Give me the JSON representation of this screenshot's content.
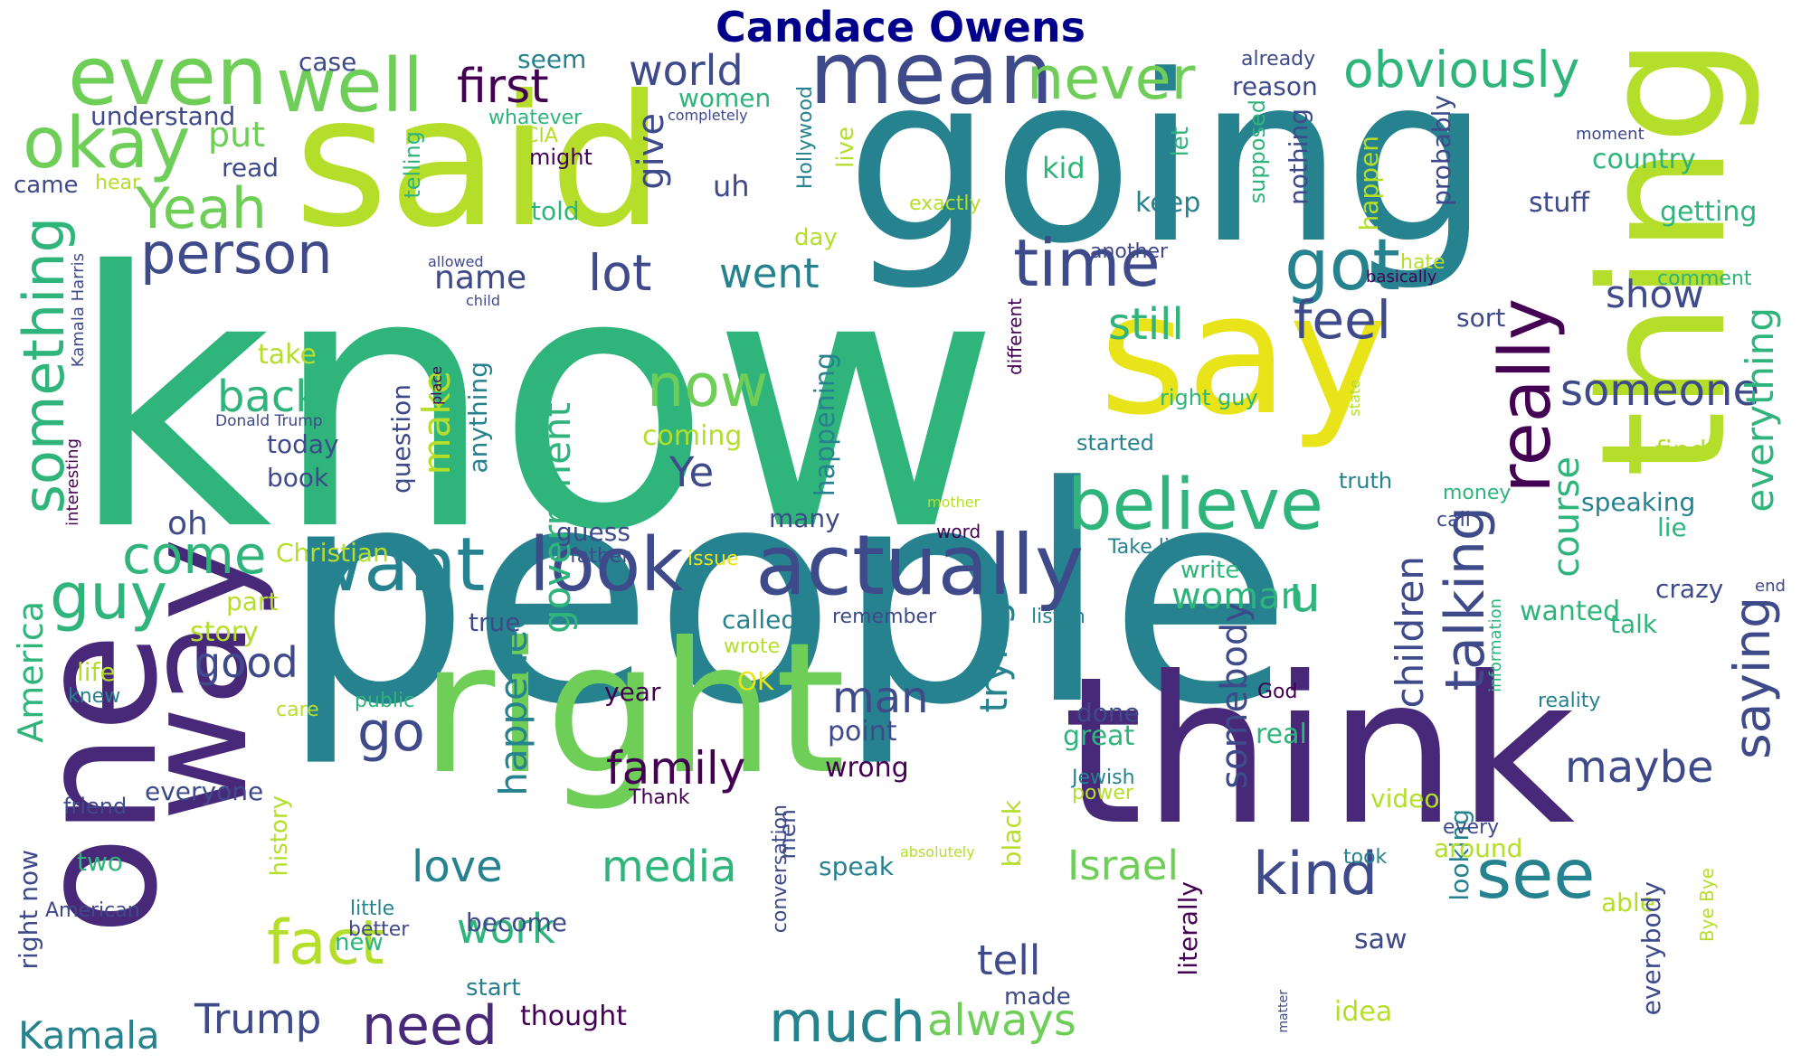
{
  "title": "Candace Owens",
  "palette": {
    "purple": "#482878",
    "indigo": "#3e4a89",
    "blue": "#31688e",
    "teal": "#26828e",
    "green": "#2fb47c",
    "lime": "#6ece58",
    "yellowgreen": "#b5de2b",
    "yellow": "#e8e419",
    "dark": "#440154"
  },
  "words": [
    {
      "text": "know",
      "color": "green"
    },
    {
      "text": "people",
      "color": "teal"
    },
    {
      "text": "going",
      "color": "teal"
    },
    {
      "text": "said",
      "color": "yellowgreen"
    },
    {
      "text": "think",
      "color": "purple"
    },
    {
      "text": "right",
      "color": "lime"
    },
    {
      "text": "say",
      "color": "yellow"
    },
    {
      "text": "one",
      "color": "purple"
    },
    {
      "text": "way",
      "color": "purple"
    },
    {
      "text": "thing",
      "color": "yellowgreen"
    },
    {
      "text": "mean",
      "color": "indigo"
    },
    {
      "text": "even",
      "color": "lime"
    },
    {
      "text": "well",
      "color": "lime"
    },
    {
      "text": "okay",
      "color": "lime"
    },
    {
      "text": "Yeah",
      "color": "lime"
    },
    {
      "text": "actually",
      "color": "indigo"
    },
    {
      "text": "look",
      "color": "indigo"
    },
    {
      "text": "want",
      "color": "teal"
    },
    {
      "text": "believe",
      "color": "green"
    },
    {
      "text": "really",
      "color": "dark"
    },
    {
      "text": "got",
      "color": "teal"
    },
    {
      "text": "time",
      "color": "indigo"
    },
    {
      "text": "person",
      "color": "indigo"
    },
    {
      "text": "something",
      "color": "green"
    },
    {
      "text": "guy",
      "color": "green"
    },
    {
      "text": "come",
      "color": "green"
    },
    {
      "text": "never",
      "color": "lime"
    },
    {
      "text": "obviously",
      "color": "green"
    },
    {
      "text": "first",
      "color": "dark"
    },
    {
      "text": "world",
      "color": "indigo"
    },
    {
      "text": "see",
      "color": "teal"
    },
    {
      "text": "kind",
      "color": "indigo"
    },
    {
      "text": "saying",
      "color": "indigo"
    },
    {
      "text": "talking",
      "color": "indigo"
    },
    {
      "text": "now",
      "color": "lime"
    },
    {
      "text": "lot",
      "color": "indigo"
    },
    {
      "text": "went",
      "color": "teal"
    },
    {
      "text": "feel",
      "color": "indigo"
    },
    {
      "text": "still",
      "color": "green"
    },
    {
      "text": "fact",
      "color": "yellowgreen"
    },
    {
      "text": "need",
      "color": "purple"
    },
    {
      "text": "much",
      "color": "teal"
    },
    {
      "text": "always",
      "color": "lime"
    },
    {
      "text": "go",
      "color": "indigo"
    },
    {
      "text": "family",
      "color": "dark"
    },
    {
      "text": "maybe",
      "color": "indigo"
    },
    {
      "text": "someone",
      "color": "indigo"
    },
    {
      "text": "everything",
      "color": "green"
    },
    {
      "text": "show",
      "color": "indigo"
    },
    {
      "text": "u",
      "color": "green"
    },
    {
      "text": "Israel",
      "color": "lime"
    },
    {
      "text": "media",
      "color": "green"
    },
    {
      "text": "love",
      "color": "teal"
    },
    {
      "text": "work",
      "color": "green"
    },
    {
      "text": "Trump",
      "color": "indigo"
    },
    {
      "text": "Kamala",
      "color": "teal"
    },
    {
      "text": "tell",
      "color": "indigo"
    },
    {
      "text": "back",
      "color": "green"
    },
    {
      "text": "good",
      "color": "indigo"
    },
    {
      "text": "make",
      "color": "yellowgreen"
    },
    {
      "text": "government",
      "color": "green"
    },
    {
      "text": "happened",
      "color": "teal"
    },
    {
      "text": "man",
      "color": "indigo"
    },
    {
      "text": "trying",
      "color": "teal"
    },
    {
      "text": "children",
      "color": "indigo"
    },
    {
      "text": "somebody",
      "color": "indigo"
    },
    {
      "text": "woman",
      "color": "green"
    },
    {
      "text": "course",
      "color": "green"
    },
    {
      "text": "Ye",
      "color": "indigo"
    },
    {
      "text": "name",
      "color": "indigo"
    },
    {
      "text": "give",
      "color": "indigo"
    },
    {
      "text": "America",
      "color": "green"
    },
    {
      "text": "put",
      "color": "lime"
    },
    {
      "text": "uh",
      "color": "indigo"
    },
    {
      "text": "oh",
      "color": "indigo"
    },
    {
      "text": "kid",
      "color": "green"
    },
    {
      "text": "keep",
      "color": "teal"
    },
    {
      "text": "coming",
      "color": "yellowgreen"
    },
    {
      "text": "today",
      "color": "indigo"
    },
    {
      "text": "book",
      "color": "indigo"
    },
    {
      "text": "take",
      "color": "yellowgreen"
    },
    {
      "text": "question",
      "color": "indigo"
    },
    {
      "text": "anything",
      "color": "teal"
    },
    {
      "text": "happening",
      "color": "teal"
    },
    {
      "text": "guess",
      "color": "indigo"
    },
    {
      "text": "many",
      "color": "indigo"
    },
    {
      "text": "story",
      "color": "yellowgreen"
    },
    {
      "text": "part",
      "color": "yellowgreen"
    },
    {
      "text": "true",
      "color": "indigo"
    },
    {
      "text": "called",
      "color": "teal"
    },
    {
      "text": "year",
      "color": "dark"
    },
    {
      "text": "point",
      "color": "indigo"
    },
    {
      "text": "wrong",
      "color": "dark"
    },
    {
      "text": "done",
      "color": "indigo"
    },
    {
      "text": "great",
      "color": "green"
    },
    {
      "text": "real",
      "color": "green"
    },
    {
      "text": "speak",
      "color": "teal"
    },
    {
      "text": "become",
      "color": "indigo"
    },
    {
      "text": "new",
      "color": "green"
    },
    {
      "text": "made",
      "color": "indigo"
    },
    {
      "text": "thought",
      "color": "dark"
    },
    {
      "text": "start",
      "color": "teal"
    },
    {
      "text": "saw",
      "color": "indigo"
    },
    {
      "text": "looking",
      "color": "teal"
    },
    {
      "text": "literally",
      "color": "dark"
    },
    {
      "text": "black",
      "color": "yellowgreen"
    },
    {
      "text": "men",
      "color": "indigo"
    },
    {
      "text": "conversation",
      "color": "indigo"
    },
    {
      "text": "video",
      "color": "yellowgreen"
    },
    {
      "text": "around",
      "color": "yellowgreen"
    },
    {
      "text": "able",
      "color": "yellowgreen"
    },
    {
      "text": "idea",
      "color": "yellowgreen"
    },
    {
      "text": "everybody",
      "color": "indigo"
    },
    {
      "text": "wanted",
      "color": "green"
    },
    {
      "text": "talk",
      "color": "green"
    },
    {
      "text": "crazy",
      "color": "indigo"
    },
    {
      "text": "speaking",
      "color": "teal"
    },
    {
      "text": "lie",
      "color": "green"
    },
    {
      "text": "find",
      "color": "yellowgreen"
    },
    {
      "text": "getting",
      "color": "green"
    },
    {
      "text": "country",
      "color": "green"
    },
    {
      "text": "stuff",
      "color": "indigo"
    },
    {
      "text": "probably",
      "color": "indigo"
    },
    {
      "text": "happen",
      "color": "yellowgreen"
    },
    {
      "text": "nothing",
      "color": "indigo"
    },
    {
      "text": "supposed",
      "color": "green"
    },
    {
      "text": "let",
      "color": "green"
    },
    {
      "text": "live",
      "color": "yellowgreen"
    },
    {
      "text": "day",
      "color": "yellowgreen"
    },
    {
      "text": "Hollywood",
      "color": "teal"
    },
    {
      "text": "told",
      "color": "green"
    },
    {
      "text": "might",
      "color": "dark"
    },
    {
      "text": "CIA",
      "color": "yellowgreen"
    },
    {
      "text": "women",
      "color": "green"
    },
    {
      "text": "seem",
      "color": "teal"
    },
    {
      "text": "case",
      "color": "indigo"
    },
    {
      "text": "understand",
      "color": "indigo"
    },
    {
      "text": "read",
      "color": "indigo"
    },
    {
      "text": "came",
      "color": "indigo"
    },
    {
      "text": "hear",
      "color": "yellowgreen"
    },
    {
      "text": "telling",
      "color": "green"
    },
    {
      "text": "whatever",
      "color": "green"
    },
    {
      "text": "completely",
      "color": "indigo"
    },
    {
      "text": "already",
      "color": "indigo"
    },
    {
      "text": "reason",
      "color": "indigo"
    },
    {
      "text": "exactly",
      "color": "yellowgreen"
    },
    {
      "text": "another",
      "color": "indigo"
    },
    {
      "text": "allowed",
      "color": "indigo"
    },
    {
      "text": "child",
      "color": "indigo"
    },
    {
      "text": "hate",
      "color": "yellowgreen"
    },
    {
      "text": "basically",
      "color": "dark"
    },
    {
      "text": "sort",
      "color": "indigo"
    },
    {
      "text": "comment",
      "color": "green"
    },
    {
      "text": "moment",
      "color": "indigo"
    },
    {
      "text": "different",
      "color": "dark"
    },
    {
      "text": "place",
      "color": "dark"
    },
    {
      "text": "Donald Trump",
      "color": "indigo"
    },
    {
      "text": "Kamala Harris",
      "color": "indigo"
    },
    {
      "text": "interesting",
      "color": "dark"
    },
    {
      "text": "Christian",
      "color": "yellowgreen"
    },
    {
      "text": "right guy",
      "color": "green"
    },
    {
      "text": "state",
      "color": "yellowgreen"
    },
    {
      "text": "started",
      "color": "teal"
    },
    {
      "text": "truth",
      "color": "teal"
    },
    {
      "text": "money",
      "color": "green"
    },
    {
      "text": "call",
      "color": "indigo"
    },
    {
      "text": "mother",
      "color": "yellowgreen"
    },
    {
      "text": "word",
      "color": "dark"
    },
    {
      "text": "Take listen",
      "color": "teal"
    },
    {
      "text": "write",
      "color": "green"
    },
    {
      "text": "father",
      "color": "indigo"
    },
    {
      "text": "issue",
      "color": "yellow"
    },
    {
      "text": "remember",
      "color": "indigo"
    },
    {
      "text": "listen",
      "color": "teal"
    },
    {
      "text": "wrote",
      "color": "yellowgreen"
    },
    {
      "text": "OK",
      "color": "yellow"
    },
    {
      "text": "information",
      "color": "green"
    },
    {
      "text": "end",
      "color": "indigo"
    },
    {
      "text": "God",
      "color": "dark"
    },
    {
      "text": "reality",
      "color": "teal"
    },
    {
      "text": "life",
      "color": "yellowgreen"
    },
    {
      "text": "knew",
      "color": "teal"
    },
    {
      "text": "care",
      "color": "yellowgreen"
    },
    {
      "text": "public",
      "color": "green"
    },
    {
      "text": "friend",
      "color": "indigo"
    },
    {
      "text": "everyone",
      "color": "indigo"
    },
    {
      "text": "Thank",
      "color": "dark"
    },
    {
      "text": "Jewish",
      "color": "teal"
    },
    {
      "text": "power",
      "color": "yellowgreen"
    },
    {
      "text": "every",
      "color": "indigo"
    },
    {
      "text": "took",
      "color": "teal"
    },
    {
      "text": "absolutely",
      "color": "yellowgreen"
    },
    {
      "text": "Bye Bye",
      "color": "yellowgreen"
    },
    {
      "text": "two",
      "color": "green"
    },
    {
      "text": "history",
      "color": "yellowgreen"
    },
    {
      "text": "right now",
      "color": "indigo"
    },
    {
      "text": "American",
      "color": "indigo"
    },
    {
      "text": "little",
      "color": "teal"
    },
    {
      "text": "better",
      "color": "indigo"
    },
    {
      "text": "matter",
      "color": "indigo"
    }
  ]
}
